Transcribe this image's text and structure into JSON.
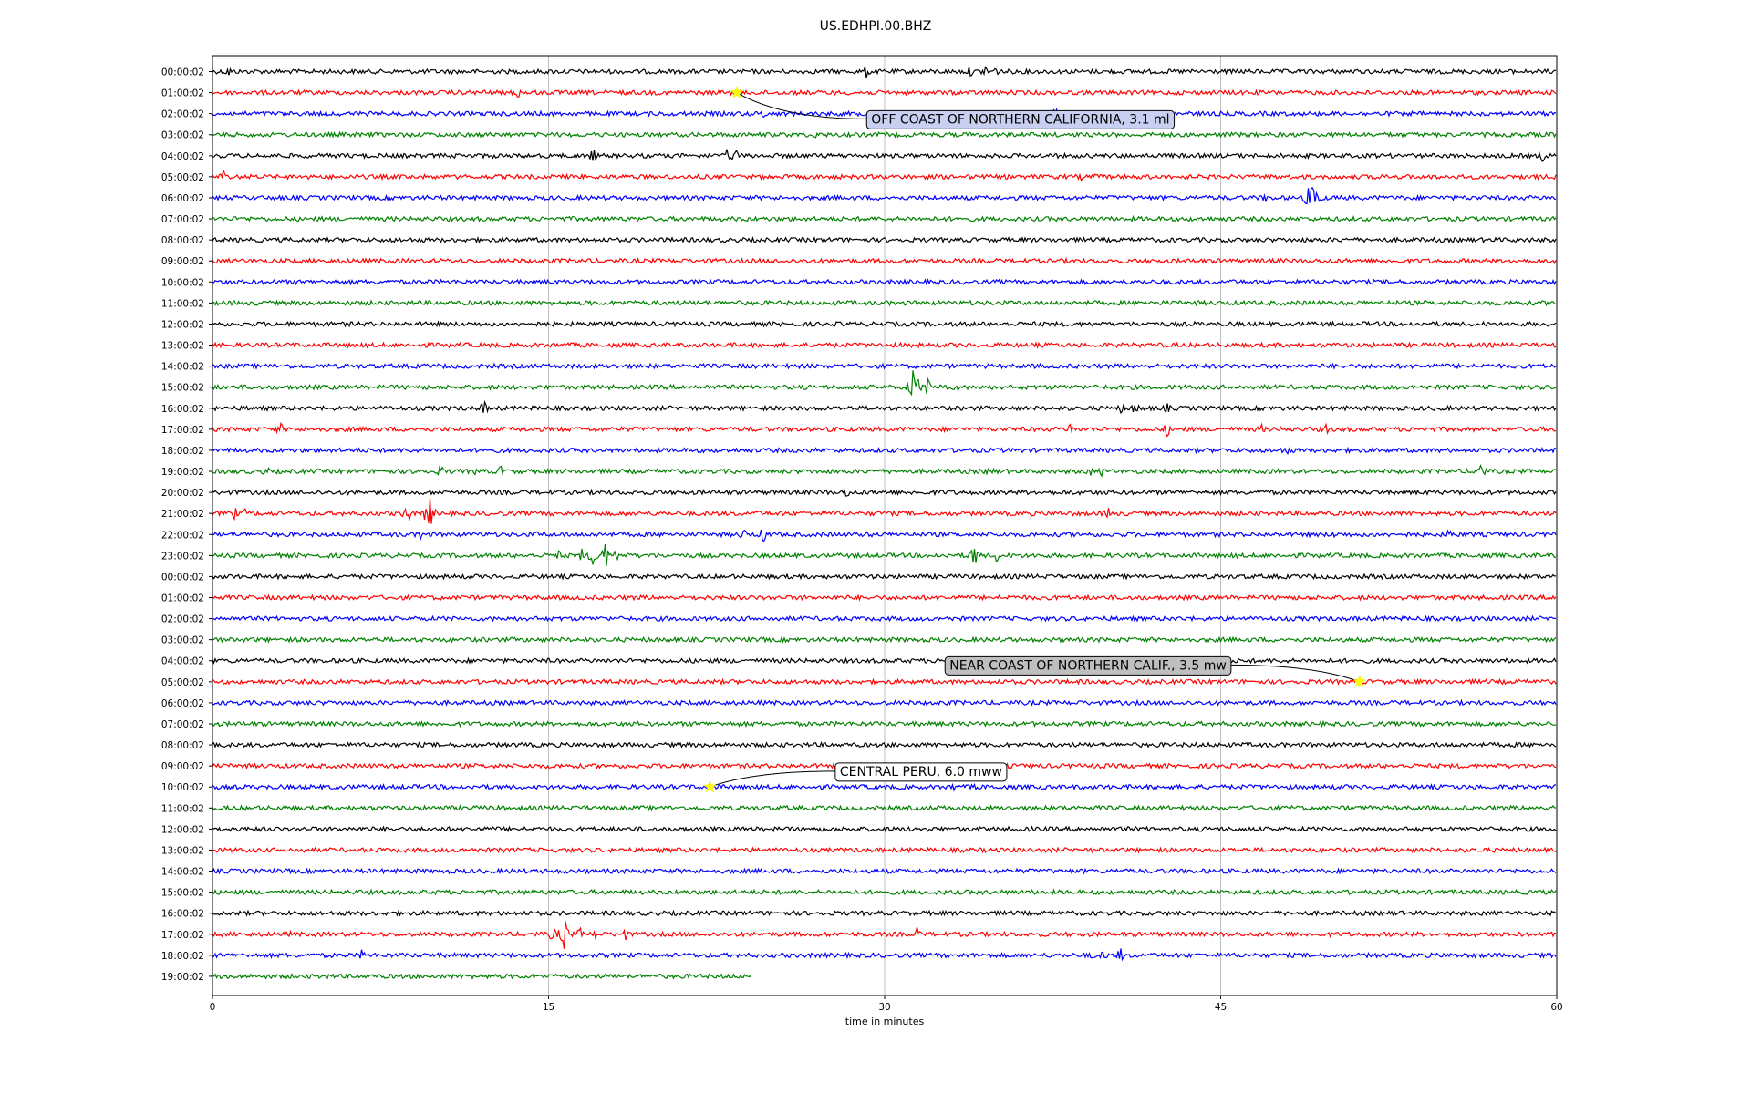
{
  "chart_data": {
    "type": "line",
    "title": "US.EDHPI.00.BHZ",
    "xlabel": "time in minutes",
    "ylabel": "",
    "xlim": [
      0,
      60
    ],
    "x_ticks": [
      "0",
      "15",
      "30",
      "45",
      "60"
    ],
    "x_tick_values": [
      0,
      15,
      30,
      45,
      60
    ],
    "grid": "vertical gridlines at tick marks",
    "row_colors": [
      "#000000",
      "#ff0000",
      "#0000ff",
      "#008000"
    ],
    "rows": [
      {
        "label": "00:00:02",
        "events": [
          [
            0.7,
            8
          ],
          [
            14.8,
            3
          ],
          [
            29.2,
            9
          ],
          [
            33.8,
            7
          ],
          [
            34.5,
            9
          ],
          [
            34.9,
            8
          ]
        ]
      },
      {
        "label": "01:00:02",
        "events": [
          [
            11.3,
            3
          ],
          [
            12.2,
            5
          ],
          [
            13.6,
            8
          ]
        ]
      },
      {
        "label": "02:00:02",
        "events": [
          [
            23.9,
            3
          ],
          [
            24.6,
            7
          ],
          [
            34.6,
            4
          ],
          [
            37.6,
            9
          ],
          [
            58.4,
            3
          ]
        ]
      },
      {
        "label": "03:00:02",
        "events": [
          [
            26.9,
            5
          ]
        ]
      },
      {
        "label": "04:00:02",
        "events": [
          [
            17.0,
            9
          ],
          [
            23.0,
            9
          ],
          [
            23.3,
            10
          ],
          [
            59.4,
            9
          ]
        ]
      },
      {
        "label": "05:00:02",
        "events": [
          [
            0.5,
            11
          ],
          [
            37.4,
            4
          ],
          [
            38.8,
            5
          ],
          [
            39.4,
            4
          ],
          [
            52.2,
            5
          ]
        ]
      },
      {
        "label": "06:00:02",
        "events": [
          [
            27.0,
            4
          ],
          [
            47.0,
            6
          ],
          [
            48.9,
            13
          ],
          [
            49.2,
            27
          ]
        ]
      },
      {
        "label": "07:00:02",
        "events": []
      },
      {
        "label": "08:00:02",
        "events": []
      },
      {
        "label": "09:00:02",
        "events": []
      },
      {
        "label": "10:00:02",
        "events": []
      },
      {
        "label": "11:00:02",
        "events": []
      },
      {
        "label": "12:00:02",
        "events": []
      },
      {
        "label": "13:00:02",
        "events": []
      },
      {
        "label": "14:00:02",
        "events": []
      },
      {
        "label": "15:00:02",
        "events": [
          [
            31.3,
            30
          ],
          [
            31.9,
            12
          ],
          [
            32.6,
            9
          ],
          [
            33.2,
            6
          ]
        ]
      },
      {
        "label": "16:00:02",
        "events": [
          [
            1.9,
            4
          ],
          [
            12.1,
            10
          ],
          [
            40.6,
            8
          ],
          [
            41.2,
            9
          ],
          [
            42.6,
            7
          ],
          [
            48.6,
            5
          ]
        ]
      },
      {
        "label": "17:00:02",
        "events": [
          [
            3.0,
            9
          ],
          [
            38.3,
            8
          ],
          [
            42.6,
            9
          ],
          [
            46.8,
            7
          ],
          [
            49.7,
            7
          ]
        ]
      },
      {
        "label": "18:00:02",
        "events": [
          [
            47.9,
            9
          ]
        ]
      },
      {
        "label": "19:00:02",
        "events": [
          [
            0.5,
            5
          ],
          [
            2.4,
            7
          ],
          [
            9.2,
            9
          ],
          [
            10.2,
            8
          ],
          [
            11.8,
            6
          ],
          [
            12.9,
            8
          ],
          [
            34.7,
            8
          ],
          [
            39.2,
            6
          ],
          [
            39.7,
            6
          ],
          [
            56.6,
            13
          ]
        ]
      },
      {
        "label": "20:00:02",
        "events": [
          [
            28.3,
            8
          ]
        ]
      },
      {
        "label": "21:00:02",
        "events": [
          [
            1.0,
            8
          ],
          [
            1.5,
            7
          ],
          [
            8.7,
            13
          ],
          [
            9.5,
            9
          ],
          [
            9.7,
            19
          ],
          [
            24.2,
            4
          ],
          [
            40.0,
            9
          ]
        ]
      },
      {
        "label": "22:00:02",
        "events": [
          [
            9.3,
            8
          ],
          [
            14.4,
            5
          ],
          [
            23.7,
            9
          ],
          [
            24.6,
            11
          ],
          [
            50.0,
            5
          ],
          [
            55.2,
            8
          ]
        ]
      },
      {
        "label": "23:00:02",
        "events": [
          [
            15.4,
            8
          ],
          [
            16.5,
            9
          ],
          [
            17.0,
            14
          ],
          [
            17.5,
            20
          ],
          [
            18.0,
            8
          ],
          [
            34.0,
            17
          ],
          [
            35.0,
            8
          ]
        ]
      },
      {
        "label": "00:00:02",
        "events": []
      },
      {
        "label": "01:00:02",
        "events": []
      },
      {
        "label": "02:00:02",
        "events": []
      },
      {
        "label": "03:00:02",
        "events": []
      },
      {
        "label": "04:00:02",
        "events": []
      },
      {
        "label": "05:00:02",
        "events": []
      },
      {
        "label": "06:00:02",
        "events": []
      },
      {
        "label": "07:00:02",
        "events": []
      },
      {
        "label": "08:00:02",
        "events": []
      },
      {
        "label": "09:00:02",
        "events": []
      },
      {
        "label": "10:00:02",
        "events": [
          [
            33.1,
            6
          ],
          [
            34.0,
            5
          ]
        ]
      },
      {
        "label": "11:00:02",
        "events": [
          [
            57.4,
            3
          ]
        ]
      },
      {
        "label": "12:00:02",
        "events": [
          [
            41.6,
            3
          ]
        ]
      },
      {
        "label": "13:00:02",
        "events": []
      },
      {
        "label": "14:00:02",
        "events": []
      },
      {
        "label": "15:00:02",
        "events": []
      },
      {
        "label": "16:00:02",
        "events": [
          [
            48.3,
            4
          ],
          [
            53.0,
            4
          ]
        ]
      },
      {
        "label": "17:00:02",
        "events": [
          [
            3.5,
            4
          ],
          [
            15.2,
            10
          ],
          [
            15.7,
            22
          ],
          [
            16.4,
            8
          ],
          [
            17.1,
            6
          ],
          [
            18.4,
            8
          ],
          [
            31.4,
            10
          ]
        ]
      },
      {
        "label": "18:00:02",
        "events": [
          [
            6.7,
            8
          ],
          [
            39.2,
            6
          ],
          [
            39.8,
            8
          ],
          [
            40.5,
            10
          ]
        ]
      },
      {
        "label": "19:00:02",
        "end": 24.1,
        "events": []
      }
    ],
    "annotations": [
      {
        "text": "OFF COAST OF NORTHERN CALIFORNIA, 3.1 ml",
        "row": 1,
        "x": 23.4,
        "box_fill": "#c8cff0",
        "box_x": 29.4,
        "box_row": 2.25,
        "anchor": "start"
      },
      {
        "text": "NEAR COAST OF NORTHERN CALIF., 3.5 mw",
        "row": 29,
        "x": 51.2,
        "box_fill": "#bfbfbf",
        "box_x": 32.9,
        "box_row": 28.2,
        "anchor": "start"
      },
      {
        "text": "CENTRAL PERU, 6.0 mww",
        "row": 34,
        "x": 22.2,
        "box_fill": "#ffffff",
        "box_x": 28.0,
        "box_row": 33.25,
        "anchor": "start"
      }
    ]
  }
}
